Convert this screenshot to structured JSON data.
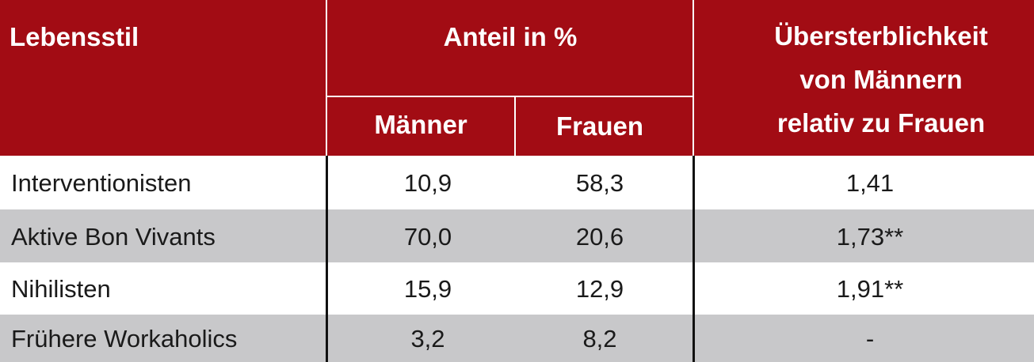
{
  "table": {
    "header": {
      "lifestyle": "Lebensstil",
      "share_group": "Anteil in %",
      "men": "Männer",
      "women": "Frauen",
      "excess_mortality": [
        "Übersterblichkeit",
        "von Männern",
        "relativ zu Frauen"
      ]
    },
    "rows": [
      [
        "Interventionisten",
        "10,9",
        "58,3",
        "1,41"
      ],
      [
        "Aktive Bon Vivants",
        "70,0",
        "20,6",
        "1,73**"
      ],
      [
        "Nihilisten",
        "15,9",
        "12,9",
        "1,91**"
      ],
      [
        "Frühere Workaholics",
        "3,2",
        "8,2",
        "-"
      ]
    ]
  }
}
